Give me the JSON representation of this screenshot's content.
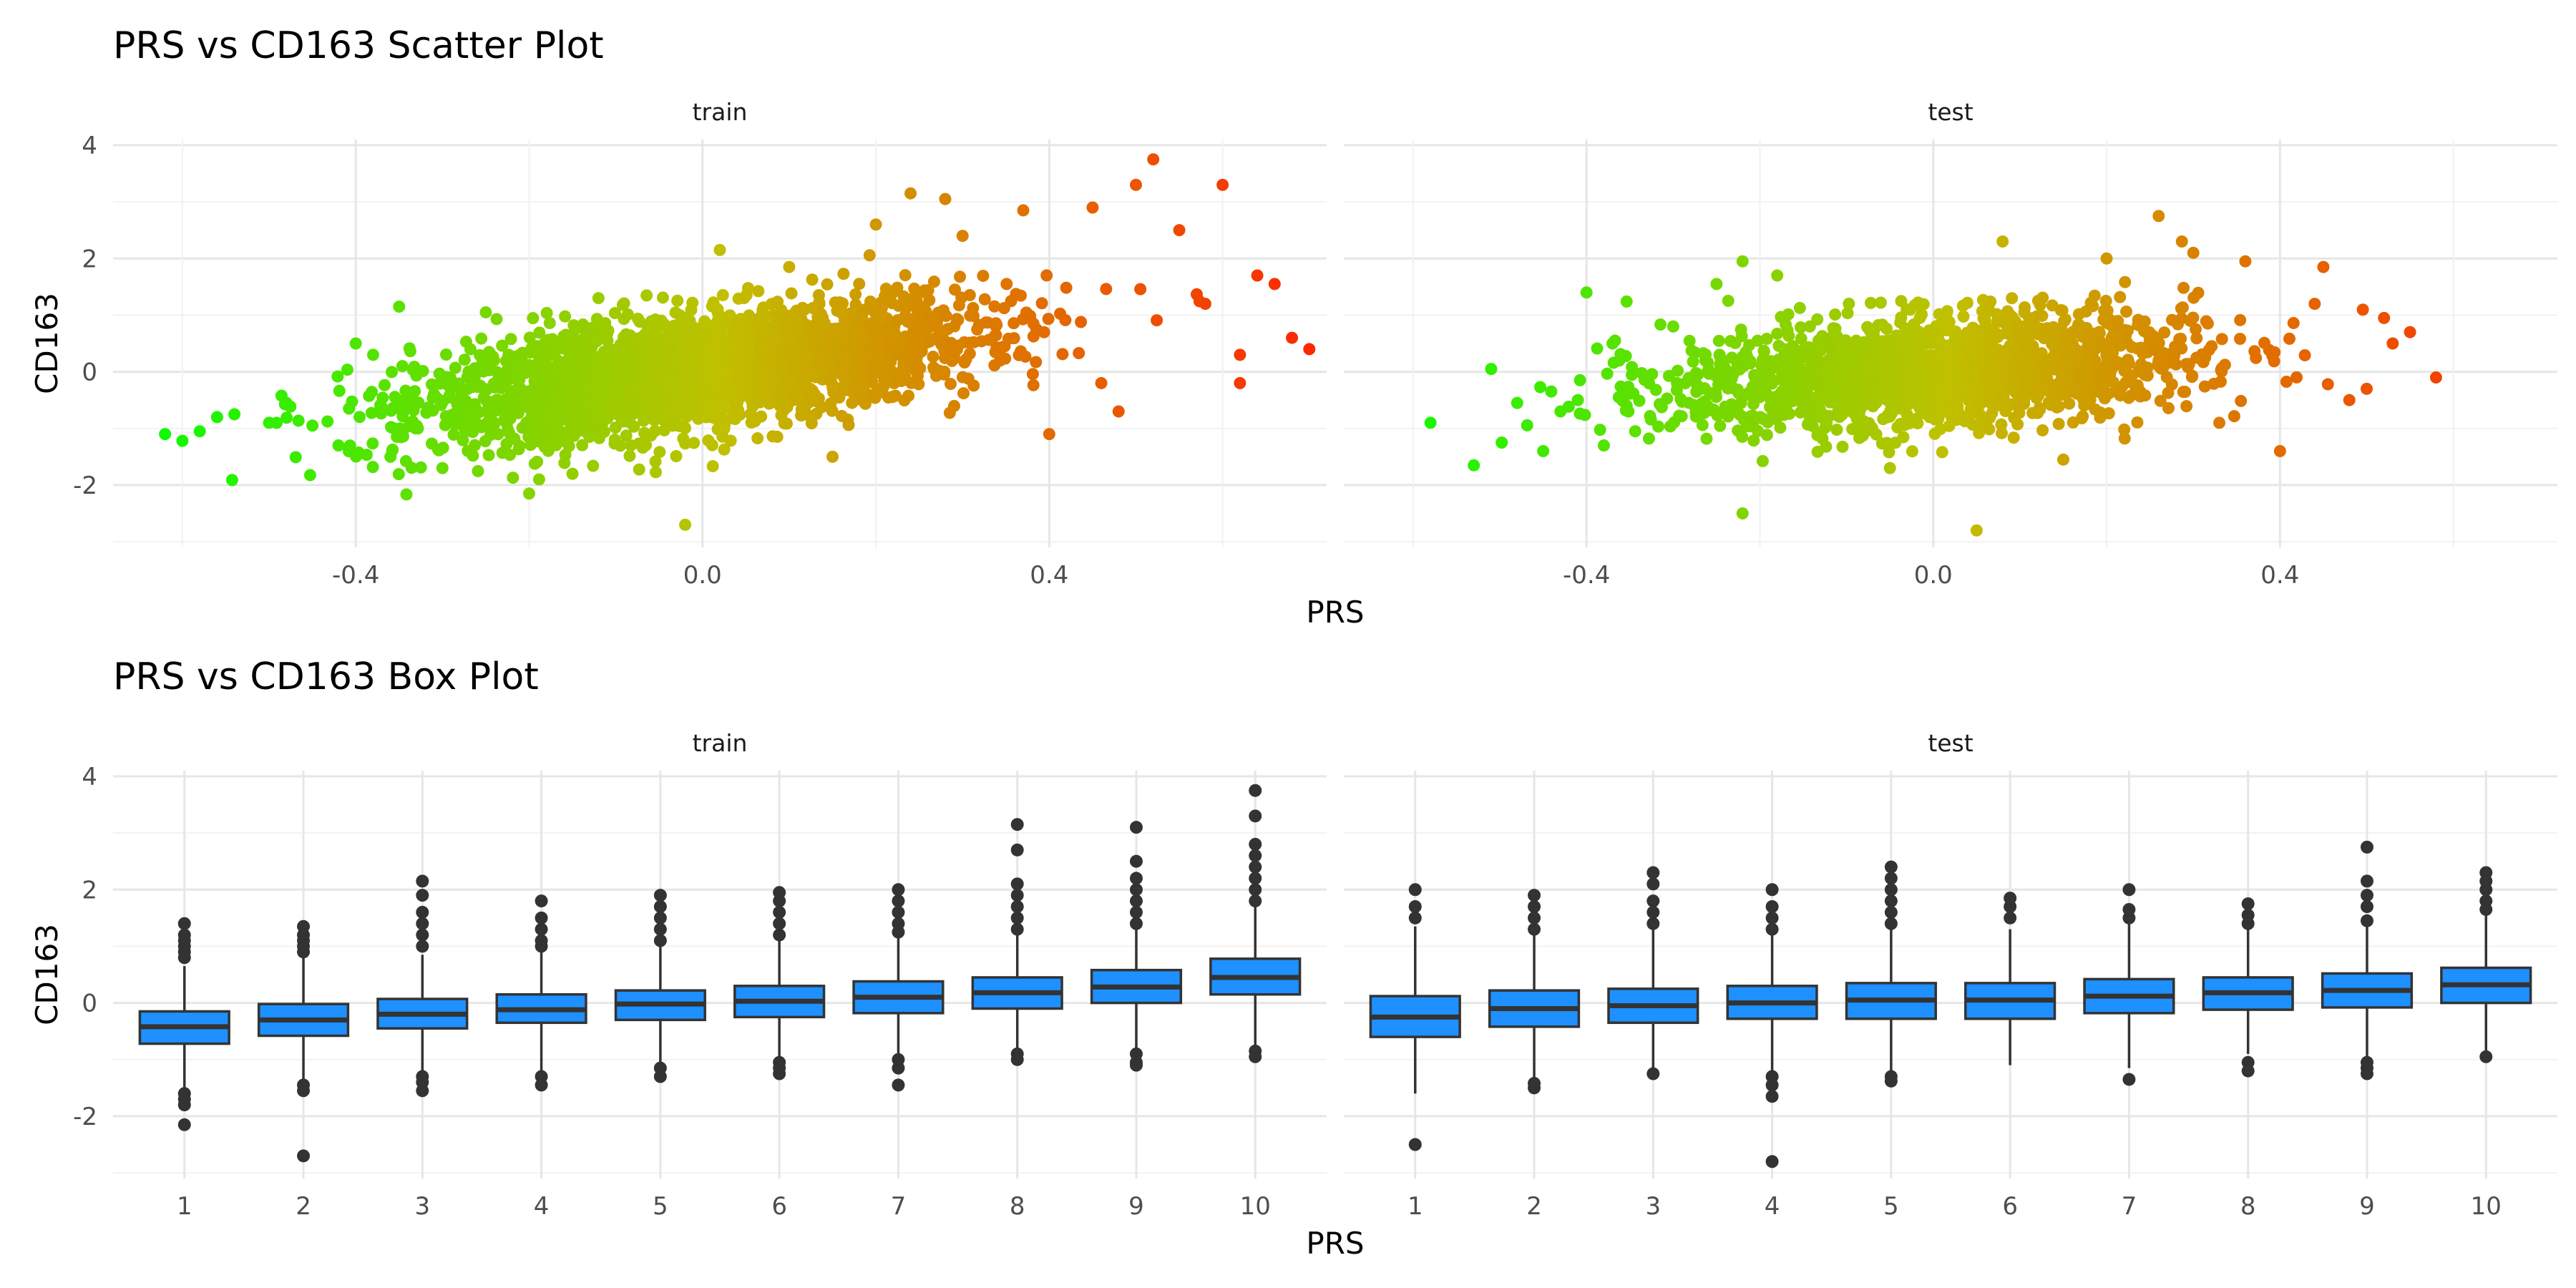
{
  "chart_data": [
    {
      "type": "scatter",
      "title": "PRS vs CD163 Scatter Plot",
      "xlabel": "PRS",
      "ylabel": "CD163",
      "facets": [
        "train",
        "test"
      ],
      "xlim": [
        -0.68,
        0.72
      ],
      "ylim": [
        -3.1,
        4.1
      ],
      "x_ticks": [
        "-0.4",
        "0.0",
        "0.4"
      ],
      "y_ticks": [
        "4",
        "2",
        "0",
        "-2"
      ],
      "color_scale": {
        "low": "#00ff00",
        "mid": "#c0c000",
        "high": "#ff2200"
      },
      "trend": {
        "train": {
          "slope": 2.1,
          "intercept": 0.0
        },
        "test": {
          "slope": 1.0,
          "intercept": 0.0
        }
      },
      "series": [
        {
          "name": "train",
          "points": [
            [
              -0.62,
              -1.1
            ],
            [
              -0.6,
              -1.22
            ],
            [
              -0.58,
              -1.05
            ],
            [
              -0.56,
              -0.8
            ],
            [
              -0.54,
              -0.75
            ],
            [
              -0.5,
              -0.9
            ],
            [
              -0.48,
              -0.55
            ],
            [
              -0.45,
              -0.95
            ],
            [
              -0.42,
              -1.3
            ],
            [
              -0.4,
              0.5
            ],
            [
              -0.38,
              0.3
            ],
            [
              -0.36,
              -1.5
            ],
            [
              -0.35,
              1.15
            ],
            [
              -0.3,
              -1.7
            ],
            [
              -0.25,
              1.05
            ],
            [
              -0.2,
              -2.15
            ],
            [
              -0.15,
              -1.8
            ],
            [
              -0.12,
              1.3
            ],
            [
              -0.02,
              -2.7
            ],
            [
              0.02,
              2.15
            ],
            [
              0.1,
              1.85
            ],
            [
              0.15,
              -1.5
            ],
            [
              0.2,
              2.6
            ],
            [
              0.24,
              3.15
            ],
            [
              0.28,
              3.05
            ],
            [
              0.3,
              2.4
            ],
            [
              0.37,
              2.85
            ],
            [
              0.4,
              -1.1
            ],
            [
              0.45,
              2.9
            ],
            [
              0.48,
              -0.7
            ],
            [
              0.5,
              3.3
            ],
            [
              0.52,
              3.75
            ],
            [
              0.55,
              2.5
            ],
            [
              0.6,
              3.3
            ],
            [
              0.62,
              0.3
            ],
            [
              0.64,
              1.7
            ],
            [
              0.66,
              1.55
            ],
            [
              0.68,
              0.6
            ],
            [
              0.7,
              0.4
            ],
            [
              0.62,
              -0.2
            ],
            [
              0.58,
              1.2
            ],
            [
              0.46,
              -0.2
            ]
          ]
        },
        {
          "name": "test",
          "points": [
            [
              -0.58,
              -0.9
            ],
            [
              -0.53,
              -1.65
            ],
            [
              -0.51,
              0.05
            ],
            [
              -0.48,
              -0.55
            ],
            [
              -0.45,
              -1.4
            ],
            [
              -0.43,
              -0.7
            ],
            [
              -0.41,
              -0.5
            ],
            [
              -0.4,
              1.4
            ],
            [
              -0.38,
              -1.3
            ],
            [
              -0.37,
              0.5
            ],
            [
              -0.25,
              1.55
            ],
            [
              -0.22,
              1.95
            ],
            [
              -0.22,
              -2.5
            ],
            [
              -0.18,
              1.7
            ],
            [
              -0.05,
              -1.7
            ],
            [
              0.05,
              -2.8
            ],
            [
              0.08,
              2.3
            ],
            [
              0.15,
              -1.55
            ],
            [
              0.2,
              2.0
            ],
            [
              0.26,
              2.75
            ],
            [
              0.3,
              2.1
            ],
            [
              0.36,
              1.95
            ],
            [
              0.4,
              -1.4
            ],
            [
              0.45,
              1.85
            ],
            [
              0.48,
              -0.5
            ],
            [
              0.52,
              0.95
            ],
            [
              0.53,
              0.5
            ],
            [
              0.55,
              0.7
            ],
            [
              0.58,
              -0.1
            ],
            [
              0.5,
              -0.3
            ],
            [
              0.44,
              1.2
            ],
            [
              -0.3,
              0.8
            ],
            [
              0.33,
              -0.9
            ]
          ]
        }
      ]
    },
    {
      "type": "box",
      "title": "PRS vs CD163 Box Plot",
      "xlabel": "PRS",
      "ylabel": "CD163",
      "facets": [
        "train",
        "test"
      ],
      "categories": [
        "1",
        "2",
        "3",
        "4",
        "5",
        "6",
        "7",
        "8",
        "9",
        "10"
      ],
      "ylim": [
        -3.1,
        4.1
      ],
      "y_ticks": [
        "4",
        "2",
        "0",
        "-2"
      ],
      "fill": "#1e90ff",
      "series": [
        {
          "name": "train",
          "boxes": [
            {
              "q1": -0.72,
              "median": -0.42,
              "q3": -0.15,
              "low": -1.5,
              "high": 0.65,
              "outliers": [
                -2.15,
                -1.6,
                -1.7,
                -1.8,
                0.8,
                0.9,
                1.0,
                1.1,
                1.2,
                1.4
              ]
            },
            {
              "q1": -0.58,
              "median": -0.3,
              "q3": -0.02,
              "low": -1.35,
              "high": 0.8,
              "outliers": [
                -2.7,
                -1.45,
                -1.55,
                0.9,
                1.0,
                1.1,
                1.2,
                1.35
              ]
            },
            {
              "q1": -0.45,
              "median": -0.2,
              "q3": 0.07,
              "low": -1.2,
              "high": 0.85,
              "outliers": [
                -1.3,
                -1.4,
                -1.55,
                1.0,
                1.2,
                1.4,
                1.6,
                1.9,
                2.15
              ]
            },
            {
              "q1": -0.35,
              "median": -0.12,
              "q3": 0.15,
              "low": -1.25,
              "high": 0.95,
              "outliers": [
                -1.3,
                -1.45,
                1.0,
                1.1,
                1.3,
                1.5,
                1.8
              ]
            },
            {
              "q1": -0.3,
              "median": -0.02,
              "q3": 0.22,
              "low": -1.1,
              "high": 1.0,
              "outliers": [
                -1.15,
                -1.3,
                1.1,
                1.3,
                1.5,
                1.7,
                1.9
              ]
            },
            {
              "q1": -0.25,
              "median": 0.03,
              "q3": 0.3,
              "low": -1.0,
              "high": 1.1,
              "outliers": [
                -1.05,
                -1.15,
                -1.25,
                1.2,
                1.4,
                1.6,
                1.8,
                1.95
              ]
            },
            {
              "q1": -0.18,
              "median": 0.1,
              "q3": 0.38,
              "low": -0.95,
              "high": 1.2,
              "outliers": [
                -1.0,
                -1.15,
                -1.45,
                1.25,
                1.4,
                1.6,
                1.8,
                2.0
              ]
            },
            {
              "q1": -0.1,
              "median": 0.18,
              "q3": 0.45,
              "low": -0.85,
              "high": 1.25,
              "outliers": [
                -0.9,
                -1.0,
                1.3,
                1.5,
                1.7,
                1.9,
                2.1,
                2.7,
                3.15
              ]
            },
            {
              "q1": 0.0,
              "median": 0.28,
              "q3": 0.58,
              "low": -0.8,
              "high": 1.35,
              "outliers": [
                -0.9,
                -1.05,
                -1.1,
                1.4,
                1.6,
                1.8,
                2.0,
                2.2,
                2.5,
                3.1
              ]
            },
            {
              "q1": 0.15,
              "median": 0.45,
              "q3": 0.78,
              "low": -0.75,
              "high": 1.7,
              "outliers": [
                -0.85,
                -0.95,
                1.8,
                2.0,
                2.2,
                2.4,
                2.6,
                2.8,
                3.3,
                3.75
              ]
            }
          ]
        },
        {
          "name": "test",
          "boxes": [
            {
              "q1": -0.6,
              "median": -0.25,
              "q3": 0.12,
              "low": -1.6,
              "high": 1.35,
              "outliers": [
                -2.5,
                1.5,
                1.7,
                2.0
              ]
            },
            {
              "q1": -0.42,
              "median": -0.1,
              "q3": 0.22,
              "low": -1.35,
              "high": 1.2,
              "outliers": [
                -1.42,
                -1.5,
                1.3,
                1.5,
                1.7,
                1.9
              ]
            },
            {
              "q1": -0.35,
              "median": -0.05,
              "q3": 0.25,
              "low": -1.2,
              "high": 1.3,
              "outliers": [
                -1.25,
                1.4,
                1.6,
                1.8,
                2.1,
                2.3
              ]
            },
            {
              "q1": -0.28,
              "median": 0.0,
              "q3": 0.3,
              "low": -1.2,
              "high": 1.2,
              "outliers": [
                -1.3,
                -1.45,
                -1.65,
                -2.8,
                1.3,
                1.5,
                1.7,
                2.0
              ]
            },
            {
              "q1": -0.28,
              "median": 0.05,
              "q3": 0.35,
              "low": -1.2,
              "high": 1.3,
              "outliers": [
                -1.3,
                -1.38,
                1.4,
                1.6,
                1.8,
                2.0,
                2.2,
                2.4
              ]
            },
            {
              "q1": -0.28,
              "median": 0.05,
              "q3": 0.35,
              "low": -1.1,
              "high": 1.3,
              "outliers": [
                1.5,
                1.7,
                1.85
              ]
            },
            {
              "q1": -0.18,
              "median": 0.12,
              "q3": 0.42,
              "low": -1.15,
              "high": 1.4,
              "outliers": [
                -1.35,
                1.5,
                1.65,
                2.0
              ]
            },
            {
              "q1": -0.12,
              "median": 0.18,
              "q3": 0.45,
              "low": -0.9,
              "high": 1.3,
              "outliers": [
                -1.05,
                -1.2,
                1.4,
                1.55,
                1.75
              ]
            },
            {
              "q1": -0.08,
              "median": 0.22,
              "q3": 0.52,
              "low": -0.95,
              "high": 1.35,
              "outliers": [
                -1.05,
                -1.15,
                -1.25,
                1.45,
                1.7,
                1.9,
                2.15,
                2.75
              ]
            },
            {
              "q1": 0.0,
              "median": 0.32,
              "q3": 0.62,
              "low": -0.9,
              "high": 1.55,
              "outliers": [
                -0.95,
                1.65,
                1.8,
                2.0,
                2.15,
                2.3
              ]
            }
          ]
        }
      ]
    }
  ]
}
